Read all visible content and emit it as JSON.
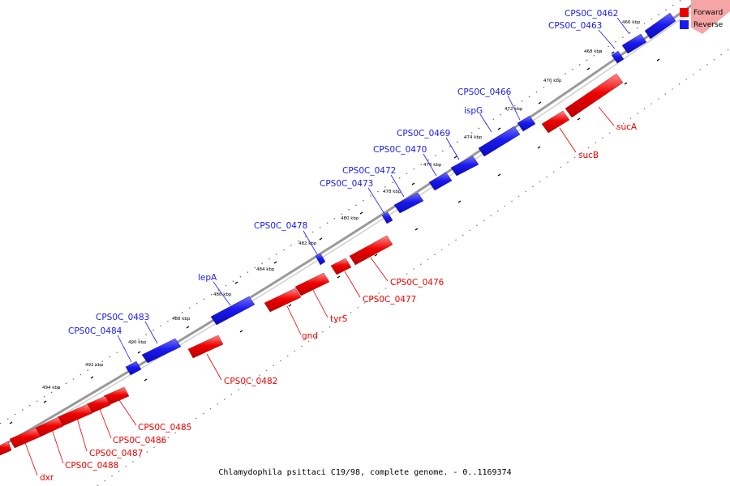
{
  "legend": {
    "forward_label": "Forward",
    "reverse_label": "Reverse",
    "forward_color": "#ee0000",
    "reverse_color": "#1a1aee"
  },
  "caption": "Chlamydophila psittaci C19/98, complete genome. - 0..1169374",
  "ticks": [
    "466 kbp",
    "468 kbp",
    "470 kbp",
    "472 kbp",
    "474 kbp",
    "476 kbp",
    "478 kbp",
    "480 kbp",
    "482 kbp",
    "484 kbp",
    "486 kbp",
    "488 kbp",
    "490 kbp",
    "492 kbp",
    "494 kbp"
  ],
  "reverse_genes": [
    "CPS0C_0462",
    "CPS0C_0463",
    "CPS0C_0466",
    "ispG",
    "CPS0C_0469",
    "CPS0C_0470",
    "CPS0C_0472",
    "CPS0C_0473",
    "CPS0C_0478",
    "lepA",
    "CPS0C_0483",
    "CPS0C_0484"
  ],
  "forward_genes": [
    "sucA",
    "sucB",
    "CPS0C_0476",
    "CPS0C_0477",
    "tyrS",
    "gnd",
    "CPS0C_0482",
    "CPS0C_0485",
    "CPS0C_0486",
    "CPS0C_0487",
    "CPS0C_0488",
    "dxr"
  ]
}
